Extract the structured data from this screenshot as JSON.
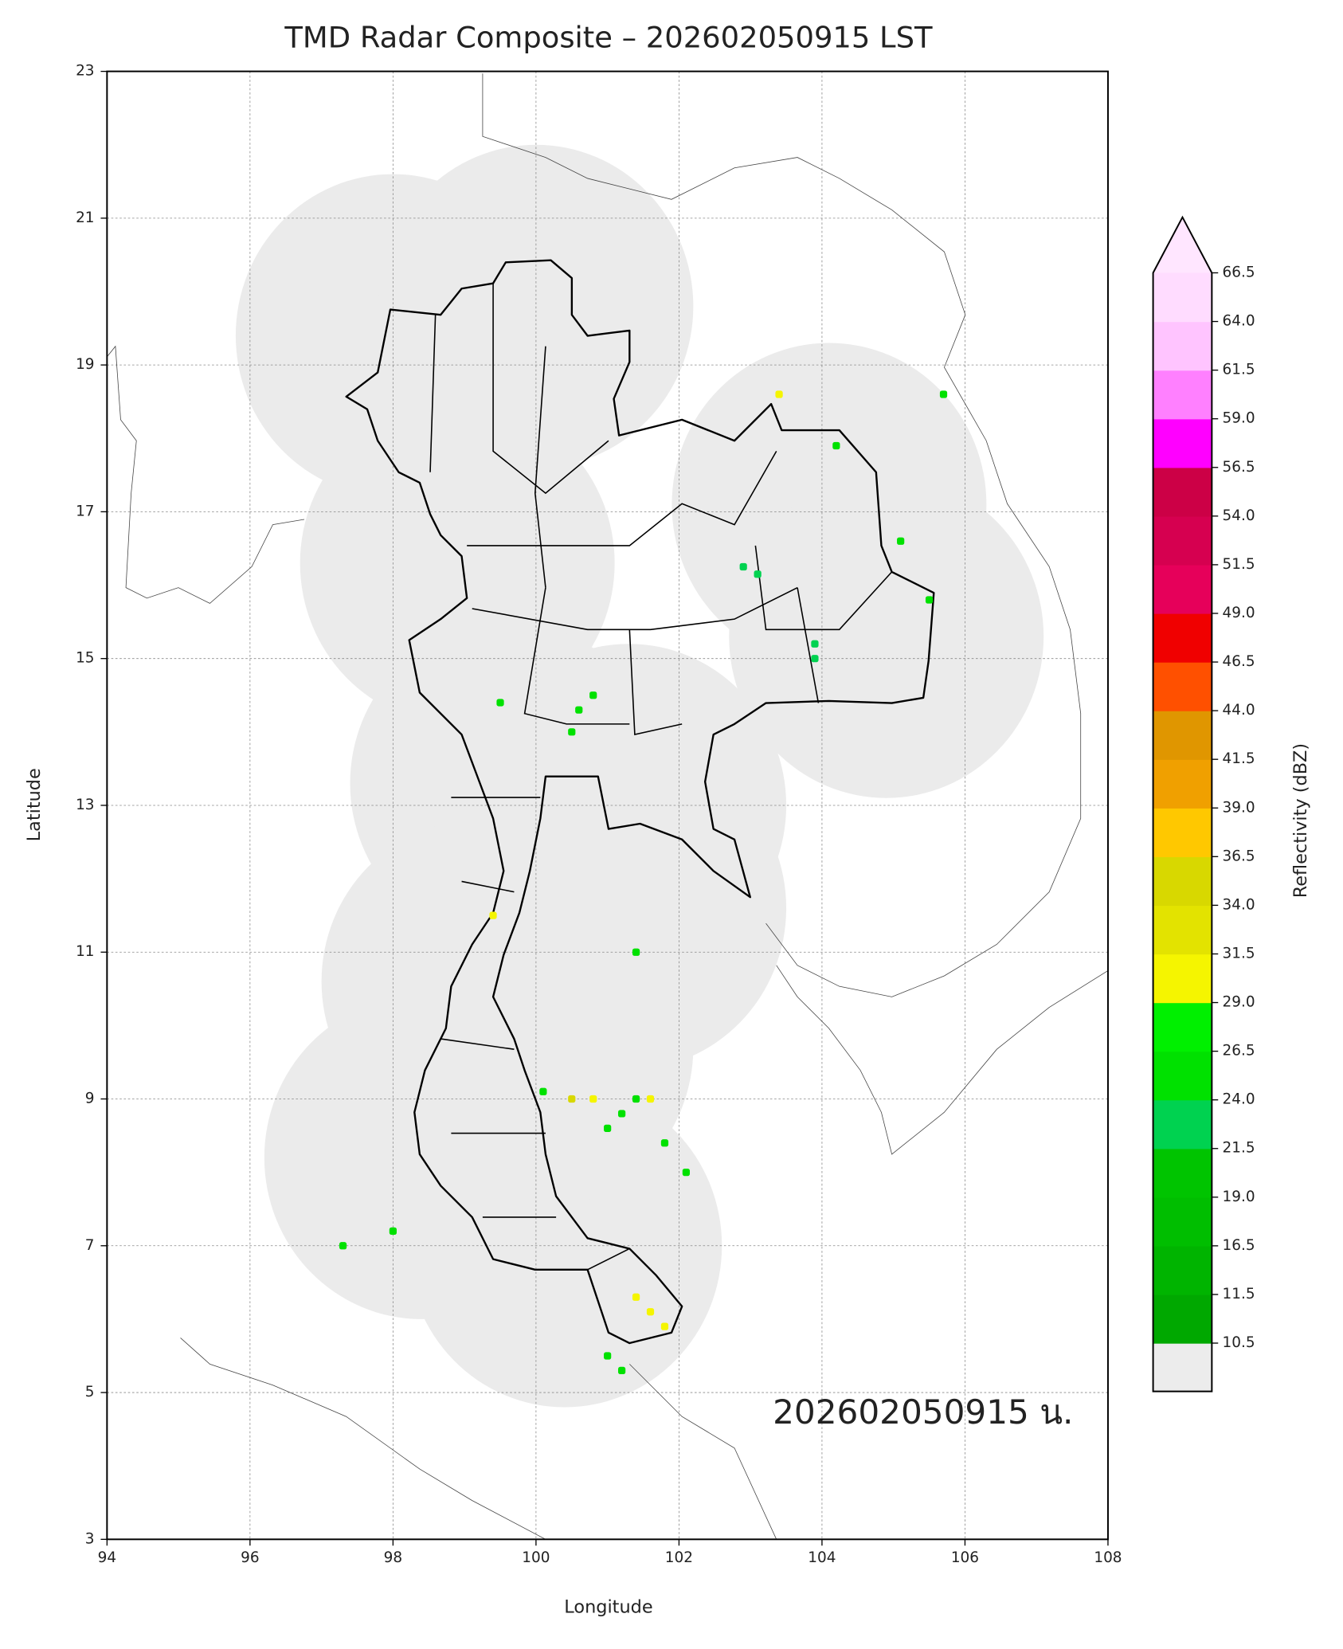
{
  "chart_data": {
    "type": "map",
    "title": "TMD Radar Composite – 202602050915 LST",
    "xlabel": "Longitude",
    "ylabel": "Latitude",
    "xlim": [
      94,
      108
    ],
    "ylim": [
      3,
      23
    ],
    "xticks": [
      94,
      96,
      98,
      100,
      102,
      104,
      106,
      108
    ],
    "yticks": [
      3,
      5,
      7,
      9,
      11,
      13,
      15,
      17,
      19,
      21,
      23
    ],
    "grid": true,
    "annotation": "202602050915 น.",
    "coverage": {
      "color": "#ebebeb",
      "lon": [
        98.0,
        100.0,
        98.9,
        104.1,
        104.9,
        99.6,
        101.3,
        99.2,
        101.3,
        98.4,
        100.4,
        100.0
      ],
      "lat": [
        19.4,
        19.8,
        16.3,
        17.1,
        15.3,
        13.3,
        13.0,
        10.6,
        11.6,
        8.2,
        7.0,
        9.7
      ],
      "radius": [
        2.2,
        2.2,
        2.2,
        2.2,
        2.2,
        2.2,
        2.2,
        2.2,
        2.2,
        2.2,
        2.2,
        2.2
      ]
    },
    "echoes": {
      "lon": [
        102.9,
        103.1,
        103.9,
        103.9,
        100.6,
        100.5,
        100.8,
        99.5,
        103.4,
        105.7,
        100.1,
        100.5,
        100.8,
        101.2,
        101.4,
        101.6,
        101.0,
        101.8,
        102.1,
        97.3,
        98.0,
        101.4,
        101.6,
        101.8,
        101.0,
        101.2,
        104.2,
        105.5,
        105.1,
        99.4,
        101.4
      ],
      "lat": [
        16.25,
        16.15,
        15.2,
        15.0,
        14.3,
        14.0,
        14.5,
        14.4,
        18.6,
        18.6,
        9.1,
        9.0,
        9.0,
        8.8,
        9.0,
        9.0,
        8.6,
        8.4,
        8.0,
        7.0,
        7.2,
        6.3,
        6.1,
        5.9,
        5.5,
        5.3,
        17.9,
        15.8,
        16.6,
        11.5,
        11.0
      ],
      "values": [
        22,
        22,
        22,
        22,
        26,
        24,
        26,
        24,
        31,
        24,
        26,
        34,
        31,
        26,
        26,
        29,
        24,
        24,
        24,
        24,
        24,
        29,
        31,
        29,
        24,
        24,
        24,
        24,
        24,
        31,
        24
      ]
    },
    "colorbar": {
      "label": "Reflectivity (dBZ)",
      "ticks": [
        10.5,
        11.5,
        16.5,
        {
          "value": 19,
          "label": "19.0"
        },
        21.5,
        {
          "value": 24,
          "label": "24.0"
        },
        26.5,
        {
          "value": 29,
          "label": "29.0"
        },
        31.5,
        {
          "value": 34,
          "label": "34.0"
        },
        36.5,
        {
          "value": 39,
          "label": "39.0"
        },
        41.5,
        {
          "value": 44,
          "label": "44.0"
        },
        46.5,
        {
          "value": 49,
          "label": "49.0"
        },
        51.5,
        {
          "value": 54,
          "label": "54.0"
        },
        56.5,
        {
          "value": 59,
          "label": "59.0"
        },
        61.5,
        {
          "value": 64,
          "label": "64.0"
        },
        66.5
      ],
      "colors": [
        "#00a800",
        "#00b400",
        "#00be00",
        "#00c400",
        "#00d250",
        "#00e100",
        "#00f000",
        "#f5f500",
        "#e3e300",
        "#d8d800",
        "#ffc800",
        "#f0a000",
        "#e09600",
        "#ff5000",
        "#f00000",
        "#e6005a",
        "#d60050",
        "#cc0046",
        "#ff00ff",
        "#ff80ff",
        "#ffc4ff",
        "#ffdcff"
      ],
      "under_color": "#ececec",
      "over_color": "#ffe6ff"
    }
  }
}
